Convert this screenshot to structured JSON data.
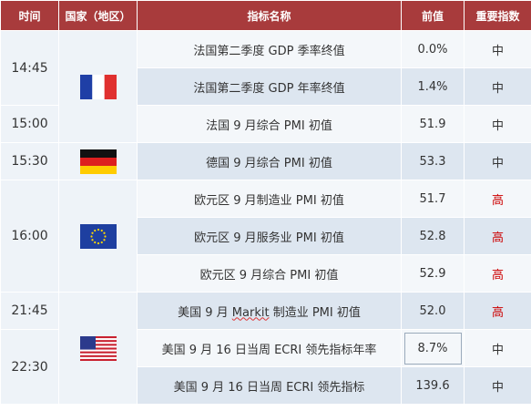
{
  "headers": {
    "time": "时间",
    "country": "国家（地区）",
    "name": "指标名称",
    "prev": "前值",
    "importance": "重要指数"
  },
  "times": [
    "14:45",
    "15:00",
    "15:30",
    "16:00",
    "21:45",
    "22:30"
  ],
  "flags": {
    "france": "france-flag-icon",
    "germany": "germany-flag-icon",
    "eu": "eu-flag-icon",
    "usa": "usa-flag-icon"
  },
  "rows": [
    {
      "name": "法国第二季度 GDP 季率终值",
      "prev": "0.0%",
      "importance": "中"
    },
    {
      "name": "法国第二季度 GDP 年率终值",
      "prev": "1.4%",
      "importance": "中"
    },
    {
      "name": "法国 9 月综合 PMI 初值",
      "prev": "51.9",
      "importance": "中"
    },
    {
      "name": "德国 9 月综合 PMI 初值",
      "prev": "53.3",
      "importance": "中"
    },
    {
      "name": "欧元区 9 月制造业 PMI 初值",
      "prev": "51.7",
      "importance": "高"
    },
    {
      "name": "欧元区 9 月服务业 PMI 初值",
      "prev": "52.8",
      "importance": "高"
    },
    {
      "name": "欧元区 9 月综合 PMI 初值",
      "prev": "52.9",
      "importance": "高"
    },
    {
      "name_pre": "美国 9 月 ",
      "name_markit": "Markit",
      "name_post": " 制造业 PMI 初值",
      "prev": "52.0",
      "importance": "高"
    },
    {
      "name": "美国 9 月 16 日当周 ECRI 领先指标年率",
      "prev": "8.7%",
      "importance": "中"
    },
    {
      "name": "美国 9 月 16 日当周 ECRI 领先指标",
      "prev": "139.6",
      "importance": "中"
    }
  ],
  "colors": {
    "header_bg": "#a83b3c",
    "high_importance": "#cc0000"
  }
}
